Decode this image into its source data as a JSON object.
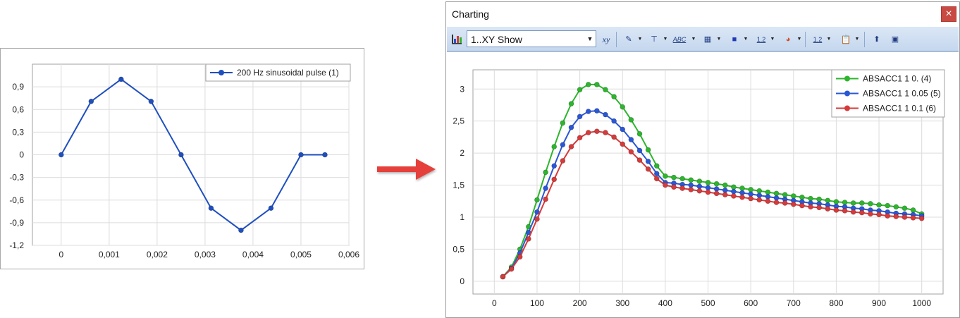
{
  "arrow_color": "#e5403a",
  "left_chart": {
    "chart_data": {
      "type": "line",
      "x": [
        0,
        0.000625,
        0.00125,
        0.001875,
        0.0025,
        0.003125,
        0.00375,
        0.004375,
        0.005,
        0.0055
      ],
      "series": [
        {
          "name": "200 Hz sinusoidal pulse (1)",
          "color": "#1f4fbf",
          "values": [
            0,
            0.707,
            1.0,
            0.707,
            0,
            -0.707,
            -1.0,
            -0.707,
            0,
            0
          ]
        }
      ],
      "xlim": [
        -0.0006,
        0.006
      ],
      "ylim": [
        -1.2,
        1.2
      ],
      "x_ticks": [
        "0",
        "0,001",
        "0,002",
        "0,003",
        "0,004",
        "0,005",
        "0,006"
      ],
      "y_ticks": [
        "0,9",
        "0,6",
        "0,3",
        "0",
        "-0,3",
        "-0,6",
        "-0,9",
        "-1,2"
      ],
      "grid": true,
      "legend": "top-right"
    }
  },
  "window": {
    "title": "Charting",
    "close_label": "×",
    "toolbar": {
      "chart_icon": "bar-chart-icon",
      "dropdown_value": "1..XY Show",
      "dropdown_arrow": "▼",
      "buttons": [
        {
          "name": "xy-axis-button",
          "glyph": "xy"
        },
        {
          "name": "edit-button",
          "glyph": "✎"
        },
        {
          "name": "axis-scale-button",
          "glyph": "⊤"
        },
        {
          "name": "labels-button",
          "glyph": "ABC"
        },
        {
          "name": "legend-button",
          "glyph": "▦"
        },
        {
          "name": "marker-button",
          "glyph": "■"
        },
        {
          "name": "values-button",
          "glyph": "1.2"
        },
        {
          "name": "color-button",
          "glyph": "◕"
        },
        {
          "name": "data-format-button",
          "glyph": "1.2"
        },
        {
          "name": "clipboard-button",
          "glyph": "📋"
        },
        {
          "name": "export-button",
          "glyph": "⬆"
        },
        {
          "name": "chart-settings-button",
          "glyph": "▣"
        }
      ]
    },
    "chart_data": {
      "type": "line",
      "x": [
        20,
        40,
        60,
        80,
        100,
        120,
        140,
        160,
        180,
        200,
        220,
        240,
        260,
        280,
        300,
        320,
        340,
        360,
        380,
        400,
        420,
        440,
        460,
        480,
        500,
        520,
        540,
        560,
        580,
        600,
        620,
        640,
        660,
        680,
        700,
        720,
        740,
        760,
        780,
        800,
        820,
        840,
        860,
        880,
        900,
        920,
        940,
        960,
        980,
        1000
      ],
      "series": [
        {
          "name": "ABSACC1 1 0. (4)",
          "color": "#2db52d",
          "values": [
            0.07,
            0.22,
            0.5,
            0.85,
            1.27,
            1.7,
            2.1,
            2.47,
            2.77,
            2.99,
            3.07,
            3.07,
            2.99,
            2.88,
            2.72,
            2.52,
            2.3,
            2.05,
            1.8,
            1.64,
            1.62,
            1.6,
            1.58,
            1.56,
            1.54,
            1.52,
            1.5,
            1.47,
            1.45,
            1.43,
            1.41,
            1.39,
            1.37,
            1.35,
            1.33,
            1.31,
            1.29,
            1.28,
            1.26,
            1.24,
            1.23,
            1.22,
            1.22,
            1.21,
            1.19,
            1.18,
            1.16,
            1.14,
            1.11,
            1.05
          ]
        },
        {
          "name": "ABSACC1 1 0.05 (5)",
          "color": "#2a57d6",
          "values": [
            0.07,
            0.2,
            0.44,
            0.76,
            1.08,
            1.45,
            1.8,
            2.13,
            2.4,
            2.57,
            2.65,
            2.66,
            2.6,
            2.5,
            2.37,
            2.21,
            2.04,
            1.87,
            1.68,
            1.54,
            1.53,
            1.51,
            1.5,
            1.48,
            1.46,
            1.44,
            1.42,
            1.4,
            1.38,
            1.36,
            1.34,
            1.32,
            1.3,
            1.28,
            1.26,
            1.24,
            1.22,
            1.21,
            1.19,
            1.17,
            1.16,
            1.14,
            1.13,
            1.11,
            1.1,
            1.08,
            1.06,
            1.05,
            1.04,
            1.02
          ]
        },
        {
          "name": "ABSACC1 1 0.1 (6)",
          "color": "#d63a3a",
          "values": [
            0.07,
            0.19,
            0.38,
            0.66,
            0.97,
            1.28,
            1.59,
            1.88,
            2.1,
            2.24,
            2.32,
            2.34,
            2.32,
            2.25,
            2.14,
            2.02,
            1.89,
            1.75,
            1.6,
            1.5,
            1.47,
            1.45,
            1.43,
            1.41,
            1.39,
            1.37,
            1.35,
            1.33,
            1.31,
            1.29,
            1.27,
            1.25,
            1.23,
            1.22,
            1.2,
            1.18,
            1.16,
            1.15,
            1.13,
            1.11,
            1.1,
            1.08,
            1.07,
            1.05,
            1.04,
            1.02,
            1.01,
            1.0,
            0.99,
            0.98
          ]
        }
      ],
      "xlim": [
        -50,
        1050
      ],
      "ylim": [
        -0.2,
        3.3
      ],
      "x_ticks": [
        "0",
        "100",
        "200",
        "300",
        "400",
        "500",
        "600",
        "700",
        "800",
        "900",
        "1000"
      ],
      "y_ticks": [
        "3",
        "2,5",
        "2",
        "1,5",
        "1",
        "0,5",
        "0"
      ],
      "grid": true,
      "legend": "top-right"
    }
  }
}
